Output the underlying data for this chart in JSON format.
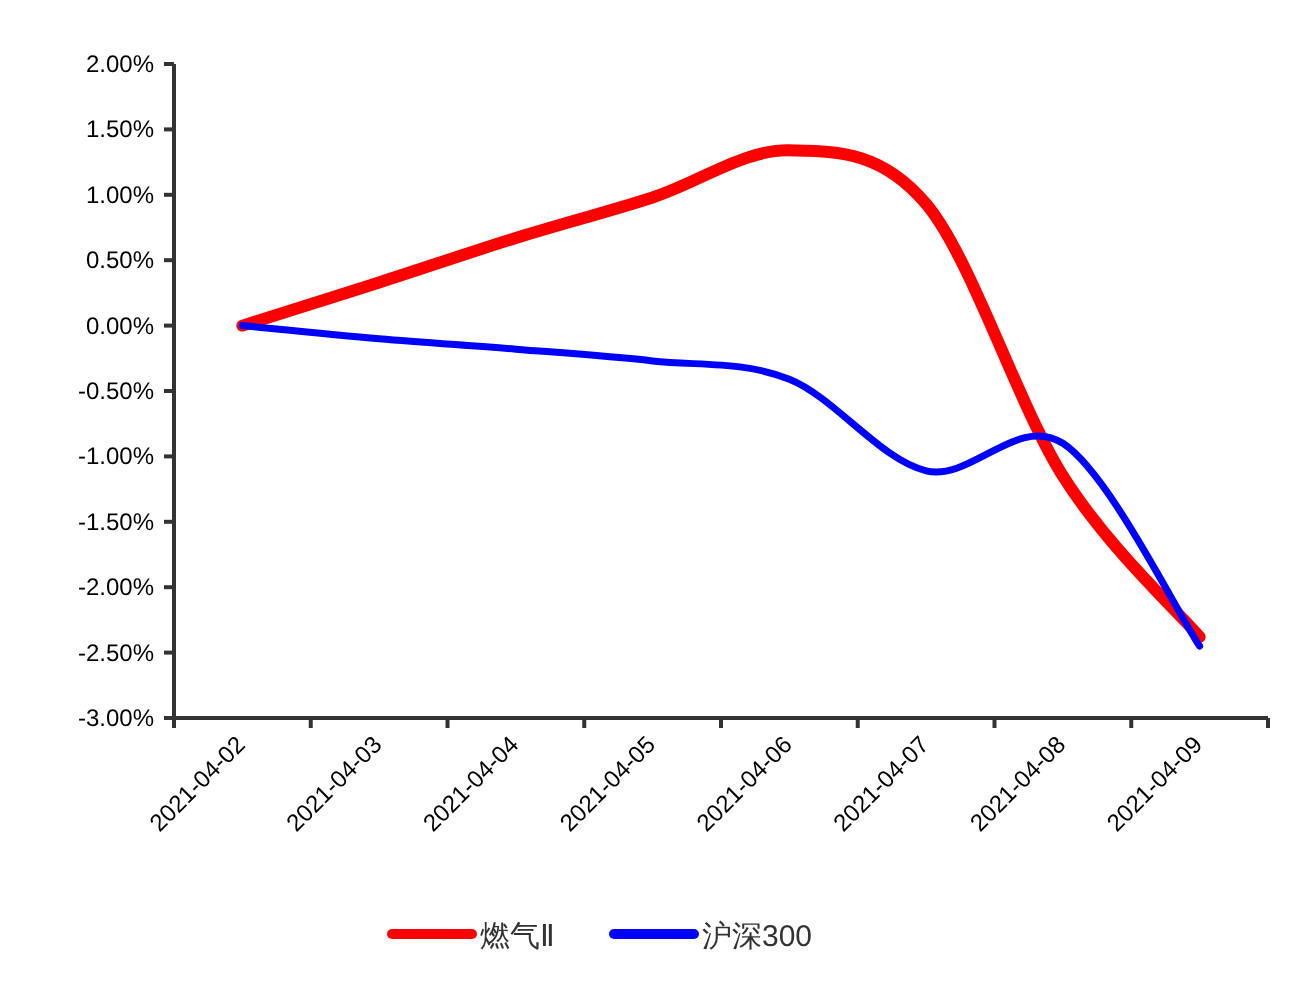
{
  "chart_data": {
    "type": "line",
    "categories": [
      "2021-04-02",
      "2021-04-03",
      "2021-04-04",
      "2021-04-05",
      "2021-04-06",
      "2021-04-07",
      "2021-04-08",
      "2021-04-09"
    ],
    "series": [
      {
        "name": "燃气Ⅱ",
        "color": "#ff0000",
        "values": [
          0,
          0.33,
          0.67,
          0.98,
          1.34,
          0.93,
          -1.15,
          -2.38
        ]
      },
      {
        "name": "沪深300",
        "color": "#0000ff",
        "values": [
          0,
          -0.1,
          -0.18,
          -0.27,
          -0.41,
          -1.11,
          -0.9,
          -2.45
        ]
      }
    ],
    "ylim": [
      -3,
      2
    ],
    "yticks": [
      {
        "value": -3,
        "label": "-3.00%"
      },
      {
        "value": -2.5,
        "label": "-2.50%"
      },
      {
        "value": -2,
        "label": "-2.00%"
      },
      {
        "value": -1.5,
        "label": "-1.50%"
      },
      {
        "value": -1,
        "label": "-1.00%"
      },
      {
        "value": -0.5,
        "label": "-0.50%"
      },
      {
        "value": 0,
        "label": "0.00%"
      },
      {
        "value": 0.5,
        "label": "0.50%"
      },
      {
        "value": 1,
        "label": "1.00%"
      },
      {
        "value": 1.5,
        "label": "1.50%"
      },
      {
        "value": 2,
        "label": "2.00%"
      }
    ],
    "grid": false,
    "legend": "bottom",
    "marker": "none",
    "line_style": "solid"
  }
}
